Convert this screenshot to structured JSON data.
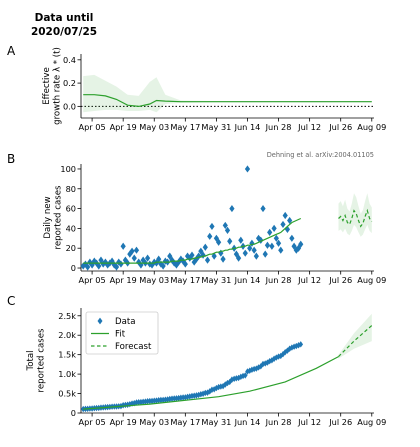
{
  "figure": {
    "title": "Data until\n2020/07/25",
    "citation": "Dehning et al. arXiv:2004.01105"
  },
  "colors": {
    "fit": "#2ca02c",
    "band": "#2ca02c",
    "data": "#1f77b4",
    "zero_line": "#000000"
  },
  "chart_data": [
    {
      "id": "A",
      "panel_label": "A",
      "type": "line",
      "ylabel": "Effective\ngrowth rate λ * (t)",
      "x_ticks": [
        "Apr 05",
        "Apr 19",
        "May 03",
        "May 17",
        "May 31",
        "Jun 14",
        "Jun 28",
        "Jul 12",
        "Jul 26",
        "Aug 09"
      ],
      "y_ticks": [
        "0.4",
        "0.2",
        "0.0"
      ],
      "ylim": [
        -0.1,
        0.45
      ],
      "xlim": [
        "2020-03-31",
        "2020-08-10"
      ],
      "zero_line": 0,
      "series": [
        {
          "role": "fit",
          "x": [
            "2020-04-01",
            "2020-04-06",
            "2020-04-11",
            "2020-04-16",
            "2020-04-21",
            "2020-04-26",
            "2020-05-01",
            "2020-05-04",
            "2020-05-08",
            "2020-05-15",
            "2020-06-01",
            "2020-08-09"
          ],
          "values": [
            0.1,
            0.1,
            0.09,
            0.06,
            0.01,
            0.0,
            0.02,
            0.05,
            0.045,
            0.04,
            0.04,
            0.04
          ],
          "lower": [
            -0.05,
            -0.04,
            -0.03,
            -0.03,
            -0.04,
            -0.04,
            -0.03,
            -0.05,
            0.02,
            0.03,
            0.035,
            0.035
          ],
          "upper": [
            0.26,
            0.27,
            0.22,
            0.17,
            0.1,
            0.09,
            0.21,
            0.25,
            0.1,
            0.05,
            0.045,
            0.045
          ]
        }
      ]
    },
    {
      "id": "B",
      "panel_label": "B",
      "type": "scatter",
      "ylabel": "Daily new\nreported cases",
      "x_ticks": [
        "Apr 05",
        "Apr 19",
        "May 03",
        "May 17",
        "May 31",
        "Jun 14",
        "Jun 28",
        "Jul 12",
        "Jul 26",
        "Aug 09"
      ],
      "y_ticks": [
        "100",
        "80",
        "60",
        "40",
        "20",
        "0"
      ],
      "ylim": [
        -3,
        105
      ],
      "xlim": [
        "2020-03-31",
        "2020-08-10"
      ],
      "data_points": {
        "start": "2020-04-01",
        "values": [
          2,
          4,
          1,
          6,
          3,
          7,
          5,
          2,
          8,
          4,
          6,
          3,
          5,
          7,
          3,
          1,
          6,
          4,
          22,
          8,
          5,
          14,
          17,
          10,
          18,
          6,
          3,
          8,
          5,
          10,
          4,
          3,
          6,
          5,
          9,
          4,
          2,
          7,
          6,
          12,
          8,
          5,
          3,
          6,
          9,
          7,
          4,
          12,
          10,
          13,
          6,
          9,
          12,
          17,
          13,
          21,
          8,
          32,
          42,
          12,
          30,
          26,
          15,
          9,
          43,
          38,
          27,
          60,
          20,
          14,
          10,
          28,
          22,
          15,
          100,
          20,
          25,
          18,
          12,
          30,
          28,
          60,
          14,
          23,
          36,
          22,
          40,
          30,
          25,
          18,
          44,
          53,
          39,
          48,
          30,
          22,
          18,
          20,
          24
        ]
      },
      "series": [
        {
          "role": "fit",
          "start": "2020-04-01",
          "values": [
            5,
            5,
            5,
            5,
            5,
            5,
            5,
            5,
            5,
            5,
            5,
            5,
            5,
            5,
            5,
            5,
            5,
            5,
            5,
            5,
            5,
            5,
            5,
            5,
            5,
            5,
            5,
            5,
            5,
            5,
            5,
            5,
            5,
            6,
            6,
            6,
            6,
            6,
            6,
            6,
            7,
            7,
            7,
            7,
            8,
            8,
            8,
            9,
            9,
            9,
            10,
            10,
            11,
            11,
            12,
            12,
            13,
            14,
            14,
            15,
            16,
            16,
            17,
            17,
            18,
            18,
            19,
            19,
            20,
            20,
            21,
            21,
            22,
            22,
            23,
            23,
            24,
            24,
            25,
            26,
            27,
            28,
            29,
            30,
            31,
            32,
            33,
            34,
            35,
            36,
            38,
            40,
            42,
            44,
            46,
            47,
            48,
            49,
            50
          ]
        },
        {
          "role": "forecast",
          "start": "2020-07-25",
          "values": [
            50,
            52,
            48,
            53,
            46,
            44,
            50,
            58,
            55,
            48,
            42,
            45,
            52,
            58,
            50,
            47
          ]
        }
      ]
    },
    {
      "id": "C",
      "panel_label": "C",
      "type": "line",
      "ylabel": "Total\nreported cases",
      "x_ticks": [
        "Apr 05",
        "Apr 19",
        "May 03",
        "May 17",
        "May 31",
        "Jun 14",
        "Jun 28",
        "Jul 12",
        "Jul 26",
        "Aug 09"
      ],
      "y_ticks": [
        "2.5k",
        "2.0k",
        "1.5k",
        "1.0k",
        "0.5k",
        "0"
      ],
      "ylim": [
        0,
        2700
      ],
      "xlim": [
        "2020-03-31",
        "2020-08-10"
      ],
      "legend": {
        "position": "top-left",
        "entries": [
          "Data",
          "Fit",
          "Forecast"
        ]
      },
      "data_points": {
        "start": "2020-04-01",
        "initial": 100
      },
      "series": [
        {
          "name": "Fit",
          "role": "fit",
          "x": [
            "2020-04-01",
            "2020-05-01",
            "2020-06-01",
            "2020-06-15",
            "2020-07-01",
            "2020-07-15",
            "2020-07-25"
          ],
          "values": [
            100,
            230,
            420,
            560,
            800,
            1150,
            1450
          ]
        },
        {
          "name": "Forecast",
          "role": "forecast",
          "x": [
            "2020-07-25",
            "2020-08-01",
            "2020-08-09"
          ],
          "values": [
            1450,
            1850,
            2250
          ],
          "lower": [
            1400,
            1650,
            1850
          ],
          "upper": [
            1500,
            2050,
            2550
          ]
        }
      ]
    }
  ]
}
